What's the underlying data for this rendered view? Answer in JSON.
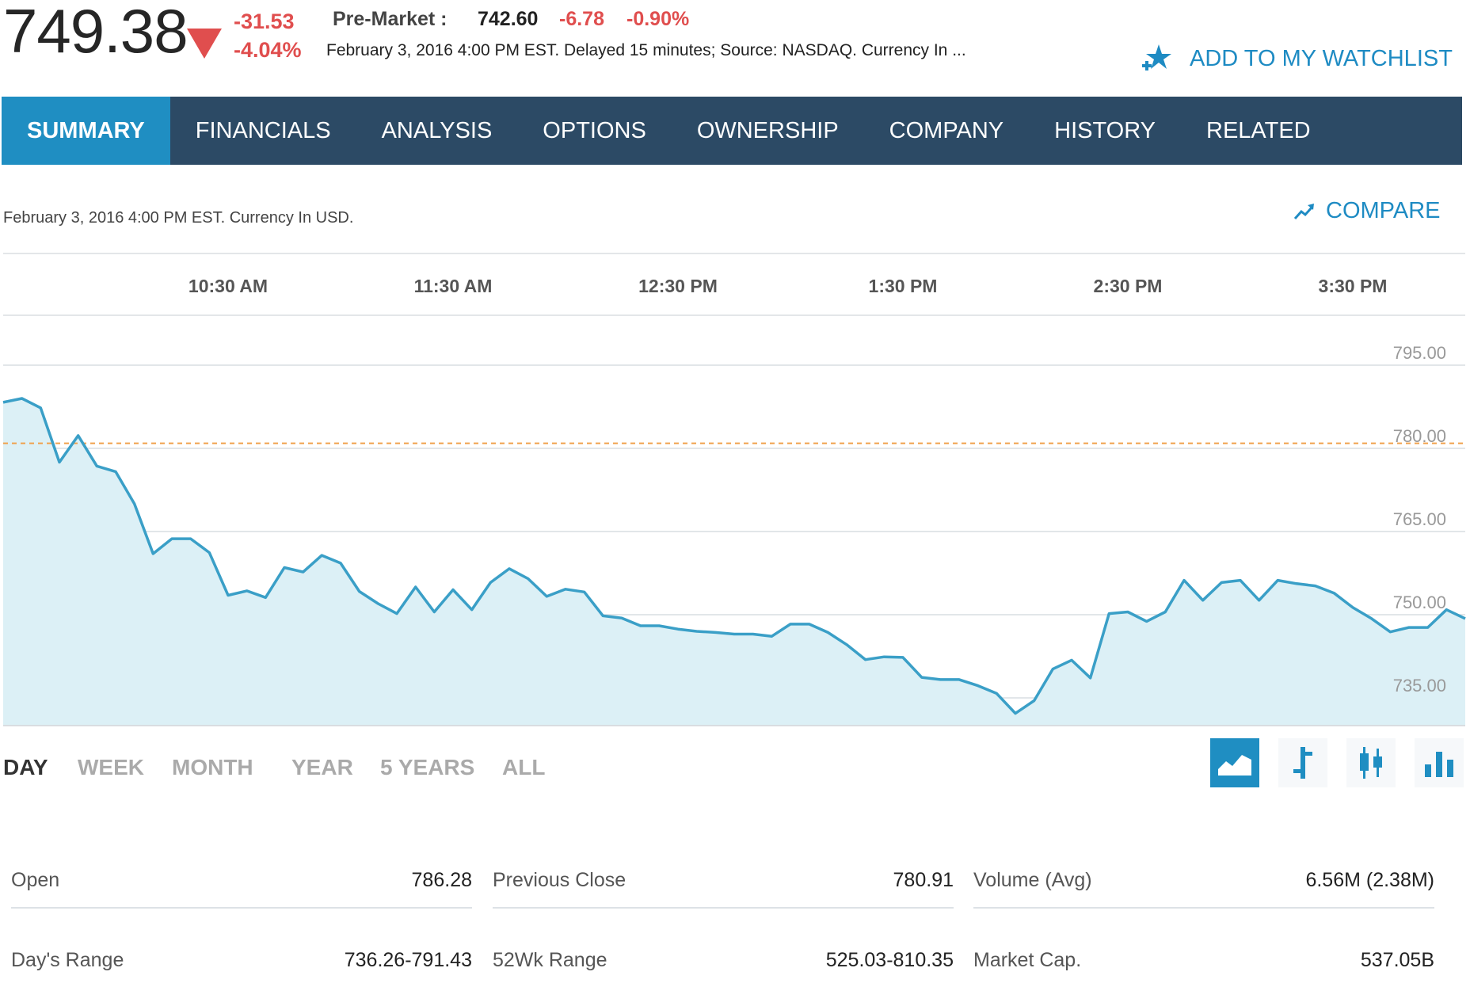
{
  "quote": {
    "price": "749.38",
    "change": "-31.53",
    "change_pct": "-4.04%",
    "premarket_label": "Pre-Market :",
    "premarket_price": "742.60",
    "premarket_change": "-6.78",
    "premarket_change_pct": "-0.90%",
    "subline": "February 3, 2016 4:00 PM EST. Delayed 15 minutes; Source: NASDAQ. Currency In ...",
    "watchlist_label": "ADD TO MY WATCHLIST"
  },
  "nav": {
    "tabs": [
      {
        "label": "SUMMARY",
        "active": true
      },
      {
        "label": "FINANCIALS"
      },
      {
        "label": "ANALYSIS"
      },
      {
        "label": "OPTIONS"
      },
      {
        "label": "OWNERSHIP"
      },
      {
        "label": "COMPANY"
      },
      {
        "label": "HISTORY"
      },
      {
        "label": "RELATED"
      }
    ]
  },
  "chart_header": {
    "info": "February 3, 2016 4:00 PM EST. Currency In USD.",
    "compare_label": "COMPARE"
  },
  "colors": {
    "accent": "#1f8ec2",
    "nav_bg": "#2c4a65",
    "negative": "#e04e4e",
    "line": "#3a9fc7",
    "fill": "#dcf0f6",
    "prev_close_line": "#f0a04b"
  },
  "chart_data": {
    "type": "area",
    "x_tick_labels": [
      "10:30 AM",
      "11:30 AM",
      "12:30 PM",
      "1:30 PM",
      "2:30 PM",
      "3:30 PM"
    ],
    "y_tick_labels": [
      "795.00",
      "780.00",
      "765.00",
      "750.00",
      "735.00"
    ],
    "ylim": [
      730,
      804
    ],
    "grid": true,
    "reference_line": {
      "value": 780.91
    },
    "series": [
      {
        "x": [
          "9:30",
          "9:35",
          "9:40",
          "9:45",
          "9:50",
          "9:55",
          "10:00",
          "10:05",
          "10:10",
          "10:15",
          "10:20",
          "10:25",
          "10:30",
          "10:35",
          "10:40",
          "10:45",
          "10:50",
          "10:55",
          "11:00",
          "11:05",
          "11:10",
          "11:15",
          "11:20",
          "11:25",
          "11:30",
          "11:35",
          "11:40",
          "11:45",
          "11:50",
          "11:55",
          "12:00",
          "12:05",
          "12:10",
          "12:15",
          "12:20",
          "12:25",
          "12:30",
          "12:35",
          "12:40",
          "12:45",
          "12:50",
          "12:55",
          "13:00",
          "13:05",
          "13:10",
          "13:15",
          "13:20",
          "13:25",
          "13:30",
          "13:35",
          "13:40",
          "13:45",
          "13:50",
          "13:55",
          "14:00",
          "14:05",
          "14:10",
          "14:15",
          "14:20",
          "14:25",
          "14:30",
          "14:35",
          "14:40",
          "14:45",
          "14:50",
          "14:55",
          "15:00",
          "15:05",
          "15:10",
          "15:15",
          "15:20",
          "15:25",
          "15:30",
          "15:35",
          "15:40",
          "15:45",
          "15:50",
          "15:55",
          "16:00"
        ],
        "values": [
          788.3,
          789.0,
          787.3,
          777.5,
          782.3,
          776.8,
          775.8,
          770.0,
          761.0,
          763.7,
          763.7,
          761.2,
          753.5,
          754.3,
          753.1,
          758.5,
          757.7,
          760.7,
          759.3,
          754.2,
          752.0,
          750.2,
          755.0,
          750.5,
          754.5,
          750.9,
          755.8,
          758.3,
          756.5,
          753.3,
          754.6,
          754.1,
          749.8,
          749.4,
          748.0,
          748.0,
          747.4,
          747.0,
          746.8,
          746.5,
          746.5,
          746.1,
          748.3,
          748.3,
          746.8,
          744.6,
          741.9,
          742.4,
          742.3,
          738.7,
          738.3,
          738.3,
          737.2,
          735.8,
          732.2,
          734.5,
          740.2,
          741.8,
          738.6,
          750.2,
          750.5,
          748.8,
          750.5,
          756.2,
          752.6,
          755.8,
          756.2,
          752.6,
          756.2,
          755.6,
          755.2,
          753.9,
          751.3,
          749.3,
          746.9,
          747.7,
          747.7,
          750.9,
          749.3
        ]
      }
    ]
  },
  "range_tabs": [
    {
      "label": "DAY",
      "active": true
    },
    {
      "label": "WEEK"
    },
    {
      "label": "MONTH"
    },
    {
      "label": "YEAR"
    },
    {
      "label": "5 YEARS"
    },
    {
      "label": "ALL"
    }
  ],
  "chart_types": [
    {
      "icon": "area-chart-icon",
      "active": true
    },
    {
      "icon": "ohlc-chart-icon"
    },
    {
      "icon": "candlestick-chart-icon"
    },
    {
      "icon": "bar-chart-icon"
    }
  ],
  "stats": [
    {
      "label": "Open",
      "value": "786.28"
    },
    {
      "label": "Previous Close",
      "value": "780.91"
    },
    {
      "label": "Volume (Avg)",
      "value": "6.56M (2.38M)"
    },
    {
      "label": "Day's Range",
      "value": "736.26-791.43"
    },
    {
      "label": "52Wk Range",
      "value": "525.03-810.35"
    },
    {
      "label": "Market Cap.",
      "value": "537.05B"
    }
  ]
}
